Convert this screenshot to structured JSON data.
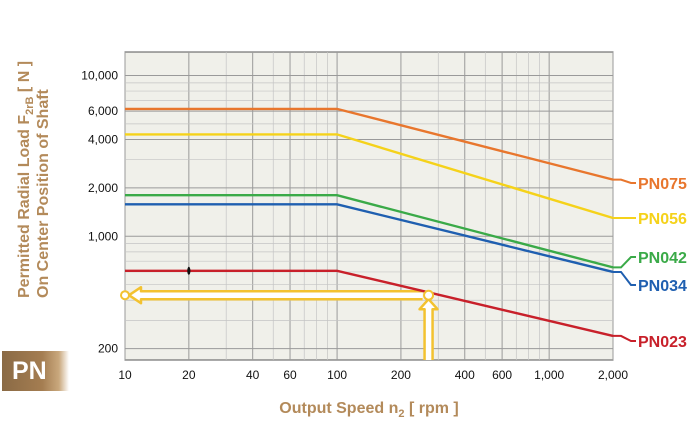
{
  "chart_data": {
    "type": "line",
    "ylabel_line1": "Permitted Radial Load F",
    "ylabel_sub": "2rB",
    "ylabel_unit": " [ N ]",
    "ylabel_line2": "On Center Position of Shaft",
    "xlabel_main": "Output Speed n",
    "xlabel_sub": "2",
    "xlabel_unit": " [ rpm ]",
    "x_scale": "log",
    "y_scale": "log",
    "xlim": [
      10,
      2000
    ],
    "ylim": [
      170,
      14000
    ],
    "x_ticks": [
      {
        "v": 10,
        "label": "10"
      },
      {
        "v": 20,
        "label": "20"
      },
      {
        "v": 40,
        "label": "40"
      },
      {
        "v": 60,
        "label": "60"
      },
      {
        "v": 100,
        "label": "100"
      },
      {
        "v": 200,
        "label": "200"
      },
      {
        "v": 400,
        "label": "400"
      },
      {
        "v": 600,
        "label": "600"
      },
      {
        "v": 1000,
        "label": "1,000"
      },
      {
        "v": 2000,
        "label": "2,000"
      }
    ],
    "y_ticks": [
      {
        "v": 200,
        "label": "200"
      },
      {
        "v": 1000,
        "label": "1,000"
      },
      {
        "v": 2000,
        "label": "2,000"
      },
      {
        "v": 4000,
        "label": "4,000"
      },
      {
        "v": 6000,
        "label": "6,000"
      },
      {
        "v": 10000,
        "label": "10,000"
      }
    ],
    "grid": true,
    "series": [
      {
        "name": "PN075",
        "color": "#e8762d",
        "x": [
          10,
          100,
          2000
        ],
        "y": [
          6200,
          6200,
          2250
        ]
      },
      {
        "name": "PN056",
        "color": "#f5d21a",
        "x": [
          10,
          100,
          2000
        ],
        "y": [
          4300,
          4300,
          1300
        ]
      },
      {
        "name": "PN042",
        "color": "#3aaa48",
        "x": [
          10,
          100,
          2000
        ],
        "y": [
          1800,
          1800,
          640
        ]
      },
      {
        "name": "PN034",
        "color": "#1f5fb0",
        "x": [
          10,
          100,
          2000
        ],
        "y": [
          1580,
          1580,
          600
        ]
      },
      {
        "name": "PN023",
        "color": "#c8202a",
        "x": [
          10,
          100,
          2000
        ],
        "y": [
          610,
          610,
          240
        ]
      }
    ],
    "annotation": {
      "color": "#f3c230",
      "point_x": 270,
      "point_y": 430,
      "arrow_from_x_y": 200,
      "arrow_to_x": 10
    },
    "badge": "PN"
  }
}
